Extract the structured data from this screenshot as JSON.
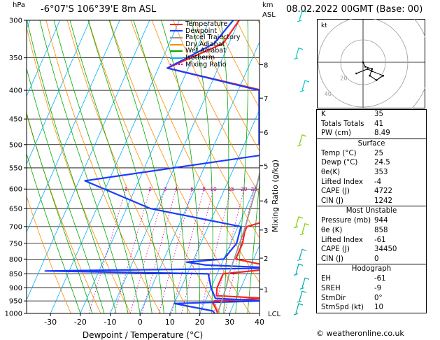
{
  "header": {
    "hpa_label": "hPa",
    "location": "-6°07'S  106°39'E  8m  ASL",
    "km_label": "km",
    "asl_label": "ASL",
    "datetime": "08.02.2022  00GMT  (Base: 00)"
  },
  "legend": [
    {
      "label": "Temperature",
      "color": "#ff2222",
      "style": "solid"
    },
    {
      "label": "Dewpoint",
      "color": "#1a3cff",
      "style": "solid"
    },
    {
      "label": "Parcel Trajectory",
      "color": "#999999",
      "style": "solid"
    },
    {
      "label": "Dry Adiabat",
      "color": "#ff8c00",
      "style": "solid"
    },
    {
      "label": "Wet Adiabat",
      "color": "#00aa00",
      "style": "solid"
    },
    {
      "label": "Isotherm",
      "color": "#00b0ff",
      "style": "solid"
    },
    {
      "label": "Mixing Ratio",
      "color": "#cc00aa",
      "style": "dotted"
    }
  ],
  "chart_data": {
    "type": "line",
    "title": "-6°07'S 106°39'E 8m ASL",
    "xlabel": "Dewpoint / Temperature (°C)",
    "ylabel": "hPa",
    "y2label": "Mixing Ratio (g/kg)",
    "xlim": [
      -38,
      40
    ],
    "ylim": [
      1000,
      300
    ],
    "x_ticks": [
      -30,
      -20,
      -10,
      0,
      10,
      20,
      30,
      40
    ],
    "pressure_levels": [
      300,
      350,
      400,
      450,
      500,
      550,
      600,
      650,
      700,
      750,
      800,
      850,
      900,
      950,
      1000
    ],
    "km_ticks": [
      {
        "km": "1",
        "p": 905
      },
      {
        "km": "2",
        "p": 797
      },
      {
        "km": "3",
        "p": 710
      },
      {
        "km": "4",
        "p": 630
      },
      {
        "km": "5",
        "p": 545
      },
      {
        "km": "6",
        "p": 475
      },
      {
        "km": "7",
        "p": 413
      },
      {
        "km": "8",
        "p": 360
      }
    ],
    "lcl": {
      "label": "LCL",
      "p": 1000
    },
    "mixing_ratio_labels": [
      {
        "label": "1",
        "w": 1
      },
      {
        "label": "2",
        "w": 2
      },
      {
        "label": "3",
        "w": 3
      },
      {
        "label": "4",
        "w": 4
      },
      {
        "label": "6",
        "w": 6
      },
      {
        "label": "8",
        "w": 8
      },
      {
        "label": "10",
        "w": 10
      },
      {
        "label": "15",
        "w": 15
      },
      {
        "label": "20",
        "w": 20
      },
      {
        "label": "25",
        "w": 25
      }
    ],
    "mixing_ratio_label_p": 600,
    "series": [
      {
        "name": "Temperature",
        "color": "#ff2222",
        "points": [
          {
            "p": 1000,
            "t": 26
          },
          {
            "p": 985,
            "t": 25
          },
          {
            "p": 960,
            "t": 23
          },
          {
            "p": 950,
            "t": 23
          },
          {
            "p": 940,
            "t": 40
          },
          {
            "p": 930,
            "t": 23
          },
          {
            "p": 900,
            "t": 22
          },
          {
            "p": 850,
            "t": 22
          },
          {
            "p": 830,
            "t": 40
          },
          {
            "p": 800,
            "t": 24
          },
          {
            "p": 750,
            "t": 24
          },
          {
            "p": 715,
            "t": 23
          },
          {
            "p": 700,
            "t": 23
          },
          {
            "p": 680,
            "t": 30
          },
          {
            "p": 660,
            "t": 40
          },
          {
            "p": 500,
            "t": 16
          },
          {
            "p": 400,
            "t": 8
          },
          {
            "p": 365,
            "t": -27
          },
          {
            "p": 330,
            "t": -12
          },
          {
            "p": 300,
            "t": -10
          }
        ]
      },
      {
        "name": "Dewpoint",
        "color": "#1a3cff",
        "points": [
          {
            "p": 1000,
            "t": 25
          },
          {
            "p": 990,
            "t": 24
          },
          {
            "p": 960,
            "t": 10
          },
          {
            "p": 950,
            "t": 40
          },
          {
            "p": 940,
            "t": 23
          },
          {
            "p": 900,
            "t": 20
          },
          {
            "p": 850,
            "t": 17
          },
          {
            "p": 840,
            "t": -38
          },
          {
            "p": 830,
            "t": 40
          },
          {
            "p": 820,
            "t": 15
          },
          {
            "p": 810,
            "t": 8
          },
          {
            "p": 800,
            "t": 20
          },
          {
            "p": 750,
            "t": 22
          },
          {
            "p": 700,
            "t": 21
          },
          {
            "p": 650,
            "t": -12
          },
          {
            "p": 580,
            "t": -38
          },
          {
            "p": 500,
            "t": 40
          },
          {
            "p": 500,
            "t": 15
          },
          {
            "p": 400,
            "t": 7
          },
          {
            "p": 365,
            "t": -27
          },
          {
            "p": 330,
            "t": -15
          },
          {
            "p": 300,
            "t": -12
          }
        ]
      },
      {
        "name": "Parcel Trajectory",
        "color": "#999999",
        "points": [
          {
            "p": 1000,
            "t": 26
          },
          {
            "p": 950,
            "t": 25.5
          },
          {
            "p": 900,
            "t": 25
          },
          {
            "p": 850,
            "t": 24
          },
          {
            "p": 800,
            "t": 23.5
          },
          {
            "p": 750,
            "t": 23
          },
          {
            "p": 700,
            "t": 22.5
          },
          {
            "p": 650,
            "t": 21.5
          },
          {
            "p": 600,
            "t": 20.5
          },
          {
            "p": 550,
            "t": 19
          },
          {
            "p": 500,
            "t": 16.5
          },
          {
            "p": 450,
            "t": 13.5
          },
          {
            "p": 400,
            "t": 9
          },
          {
            "p": 350,
            "t": 3
          }
        ]
      }
    ]
  },
  "hodograph": {
    "kt_label": "kt",
    "rings": [
      20,
      40,
      60
    ],
    "ring_labels": [
      {
        "label": "40",
        "ring": 40
      },
      {
        "label": "20",
        "ring": 20
      }
    ],
    "points": [
      {
        "u": 0,
        "v": 0
      },
      {
        "u": 1,
        "v": -2
      },
      {
        "u": 4,
        "v": -3
      },
      {
        "u": 3,
        "v": -6
      },
      {
        "u": 6,
        "v": -8
      },
      {
        "u": 9,
        "v": -6
      },
      {
        "u": 4,
        "v": -4
      },
      {
        "u": 2,
        "v": -3
      },
      {
        "u": -3,
        "v": -5
      }
    ]
  },
  "indices": {
    "rows": [
      {
        "label": "K",
        "value": "35"
      },
      {
        "label": "Totals Totals",
        "value": "41"
      },
      {
        "label": "PW (cm)",
        "value": "8.49"
      }
    ]
  },
  "surface": {
    "title": "Surface",
    "rows": [
      {
        "label": "Temp (°C)",
        "value": "25"
      },
      {
        "label": "Dewp (°C)",
        "value": "24.5"
      },
      {
        "label": "θe(K)",
        "value": "353"
      },
      {
        "label": "Lifted Index",
        "value": "-4"
      },
      {
        "label": "CAPE (J)",
        "value": "4722"
      },
      {
        "label": "CIN (J)",
        "value": "1242"
      }
    ]
  },
  "most_unstable": {
    "title": "Most Unstable",
    "rows": [
      {
        "label": "Pressure (mb)",
        "value": "944"
      },
      {
        "label": "θe (K)",
        "value": "858"
      },
      {
        "label": "Lifted Index",
        "value": "-61"
      },
      {
        "label": "CAPE (J)",
        "value": "34450"
      },
      {
        "label": "CIN (J)",
        "value": "0"
      }
    ]
  },
  "hodograph_table": {
    "title": "Hodograph",
    "rows": [
      {
        "label": "EH",
        "value": "-61"
      },
      {
        "label": "SREH",
        "value": "-9"
      },
      {
        "label": "StmDir",
        "value": "0°"
      },
      {
        "label": "StmSpd (kt)",
        "value": "10"
      }
    ]
  },
  "footer": {
    "copyright": "© weatheronline.co.uk"
  }
}
